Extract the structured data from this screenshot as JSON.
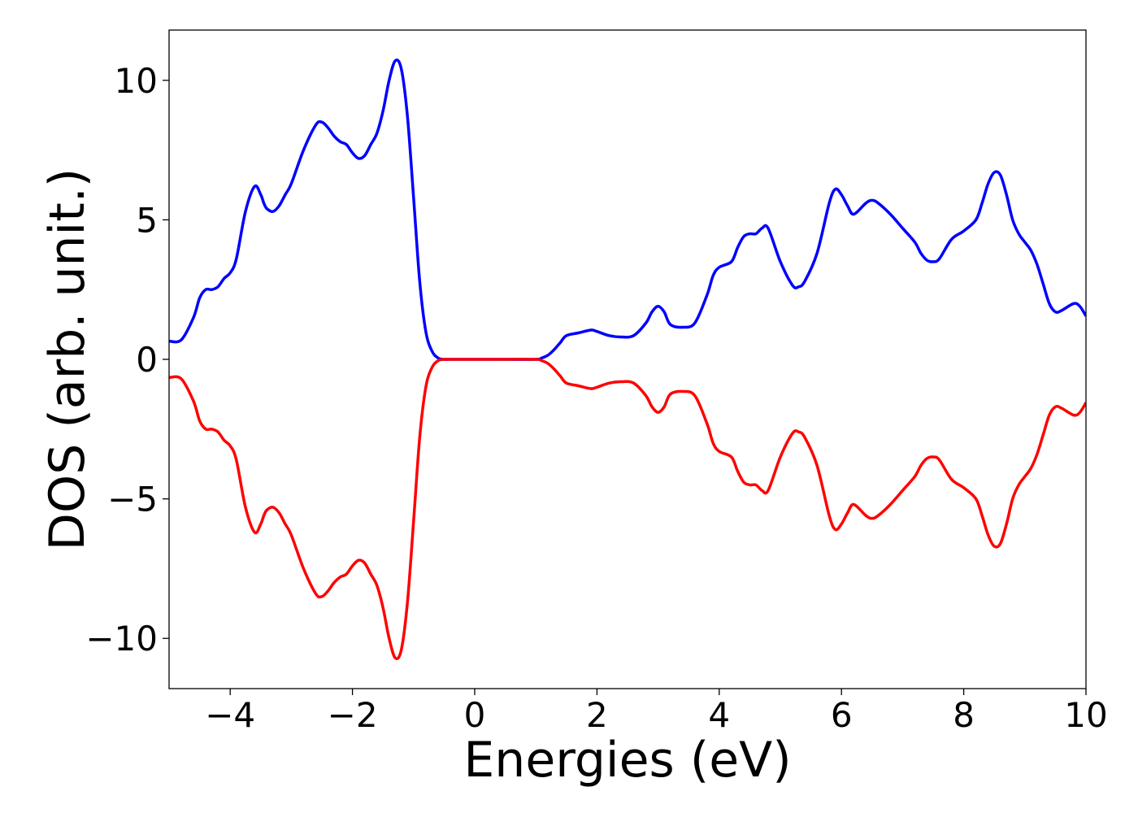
{
  "chart_data": {
    "type": "line",
    "title": "",
    "xlabel": "Energies (eV)",
    "ylabel": "DOS (arb. unit.)",
    "xlim": [
      -5,
      10
    ],
    "ylim": [
      -11.8,
      11.8
    ],
    "grid": false,
    "legend": "none",
    "xticks": [
      {
        "value": -4,
        "label": "−4"
      },
      {
        "value": -2,
        "label": "−2"
      },
      {
        "value": 0,
        "label": "0"
      },
      {
        "value": 2,
        "label": "2"
      },
      {
        "value": 4,
        "label": "4"
      },
      {
        "value": 6,
        "label": "6"
      },
      {
        "value": 8,
        "label": "8"
      },
      {
        "value": 10,
        "label": "10"
      }
    ],
    "yticks": [
      {
        "value": 10,
        "label": "10"
      },
      {
        "value": 5,
        "label": "5"
      },
      {
        "value": 0,
        "label": "0"
      },
      {
        "value": -5,
        "label": "−5"
      },
      {
        "value": -10,
        "label": "−10"
      }
    ],
    "x": [
      -5.0,
      -4.8,
      -4.6,
      -4.5,
      -4.4,
      -4.3,
      -4.2,
      -4.1,
      -4.0,
      -3.9,
      -3.75,
      -3.6,
      -3.5,
      -3.45,
      -3.4,
      -3.3,
      -3.2,
      -3.1,
      -3.0,
      -2.8,
      -2.6,
      -2.5,
      -2.4,
      -2.3,
      -2.2,
      -2.1,
      -2.0,
      -1.9,
      -1.8,
      -1.7,
      -1.6,
      -1.5,
      -1.4,
      -1.3,
      -1.2,
      -1.1,
      -1.0,
      -0.9,
      -0.8,
      -0.7,
      -0.6,
      -0.5,
      -0.4,
      -0.2,
      0.0,
      0.5,
      1.0,
      1.1,
      1.2,
      1.3,
      1.4,
      1.5,
      1.7,
      1.9,
      2.0,
      2.2,
      2.4,
      2.6,
      2.8,
      2.9,
      3.0,
      3.1,
      3.2,
      3.4,
      3.6,
      3.8,
      3.9,
      4.0,
      4.2,
      4.3,
      4.4,
      4.5,
      4.6,
      4.7,
      4.8,
      5.0,
      5.2,
      5.3,
      5.4,
      5.6,
      5.8,
      5.9,
      6.0,
      6.1,
      6.2,
      6.4,
      6.5,
      6.6,
      6.8,
      7.0,
      7.2,
      7.3,
      7.4,
      7.5,
      7.6,
      7.8,
      8.0,
      8.2,
      8.3,
      8.4,
      8.5,
      8.6,
      8.7,
      8.8,
      8.9,
      9.0,
      9.1,
      9.2,
      9.3,
      9.4,
      9.5,
      9.6,
      9.8,
      9.9,
      10.0
    ],
    "series": [
      {
        "color": "#0000ff",
        "values": [
          0.65,
          0.7,
          1.5,
          2.2,
          2.5,
          2.5,
          2.6,
          2.9,
          3.1,
          3.6,
          5.3,
          6.2,
          5.9,
          5.6,
          5.4,
          5.3,
          5.5,
          5.9,
          6.3,
          7.5,
          8.4,
          8.5,
          8.3,
          8.0,
          7.8,
          7.7,
          7.4,
          7.2,
          7.3,
          7.7,
          8.1,
          8.9,
          10.0,
          10.7,
          10.4,
          8.7,
          5.8,
          2.8,
          1.0,
          0.3,
          0.05,
          0.0,
          0.0,
          0.0,
          0.0,
          0.0,
          0.0,
          0.05,
          0.15,
          0.35,
          0.6,
          0.85,
          0.95,
          1.05,
          1.0,
          0.85,
          0.8,
          0.85,
          1.3,
          1.7,
          1.9,
          1.7,
          1.25,
          1.15,
          1.3,
          2.3,
          3.0,
          3.3,
          3.5,
          4.0,
          4.4,
          4.5,
          4.5,
          4.7,
          4.7,
          3.5,
          2.65,
          2.6,
          2.8,
          3.8,
          5.6,
          6.1,
          5.9,
          5.5,
          5.2,
          5.6,
          5.7,
          5.6,
          5.2,
          4.7,
          4.2,
          3.8,
          3.55,
          3.5,
          3.6,
          4.3,
          4.6,
          5.0,
          5.6,
          6.3,
          6.7,
          6.6,
          5.9,
          5.0,
          4.5,
          4.2,
          3.9,
          3.4,
          2.7,
          2.0,
          1.7,
          1.75,
          2.0,
          1.9,
          1.55
        ]
      },
      {
        "color": "#ff0000",
        "values": [
          -0.65,
          -0.7,
          -1.5,
          -2.2,
          -2.5,
          -2.5,
          -2.6,
          -2.9,
          -3.1,
          -3.6,
          -5.3,
          -6.2,
          -5.9,
          -5.6,
          -5.4,
          -5.3,
          -5.5,
          -5.9,
          -6.3,
          -7.5,
          -8.4,
          -8.5,
          -8.3,
          -8.0,
          -7.8,
          -7.7,
          -7.4,
          -7.2,
          -7.3,
          -7.7,
          -8.1,
          -8.9,
          -10.0,
          -10.7,
          -10.4,
          -8.7,
          -5.8,
          -2.8,
          -1.0,
          -0.3,
          -0.05,
          0.0,
          0.0,
          0.0,
          0.0,
          0.0,
          0.0,
          -0.05,
          -0.15,
          -0.35,
          -0.6,
          -0.85,
          -0.95,
          -1.05,
          -1.0,
          -0.85,
          -0.8,
          -0.85,
          -1.3,
          -1.7,
          -1.9,
          -1.7,
          -1.25,
          -1.15,
          -1.3,
          -2.3,
          -3.0,
          -3.3,
          -3.5,
          -4.0,
          -4.4,
          -4.5,
          -4.5,
          -4.7,
          -4.7,
          -3.5,
          -2.65,
          -2.6,
          -2.8,
          -3.8,
          -5.6,
          -6.1,
          -5.9,
          -5.5,
          -5.2,
          -5.6,
          -5.7,
          -5.6,
          -5.2,
          -4.7,
          -4.2,
          -3.8,
          -3.55,
          -3.5,
          -3.6,
          -4.3,
          -4.6,
          -5.0,
          -5.6,
          -6.3,
          -6.7,
          -6.6,
          -5.9,
          -5.0,
          -4.5,
          -4.2,
          -3.9,
          -3.4,
          -2.7,
          -2.0,
          -1.7,
          -1.75,
          -2.0,
          -1.9,
          -1.55
        ]
      }
    ]
  }
}
